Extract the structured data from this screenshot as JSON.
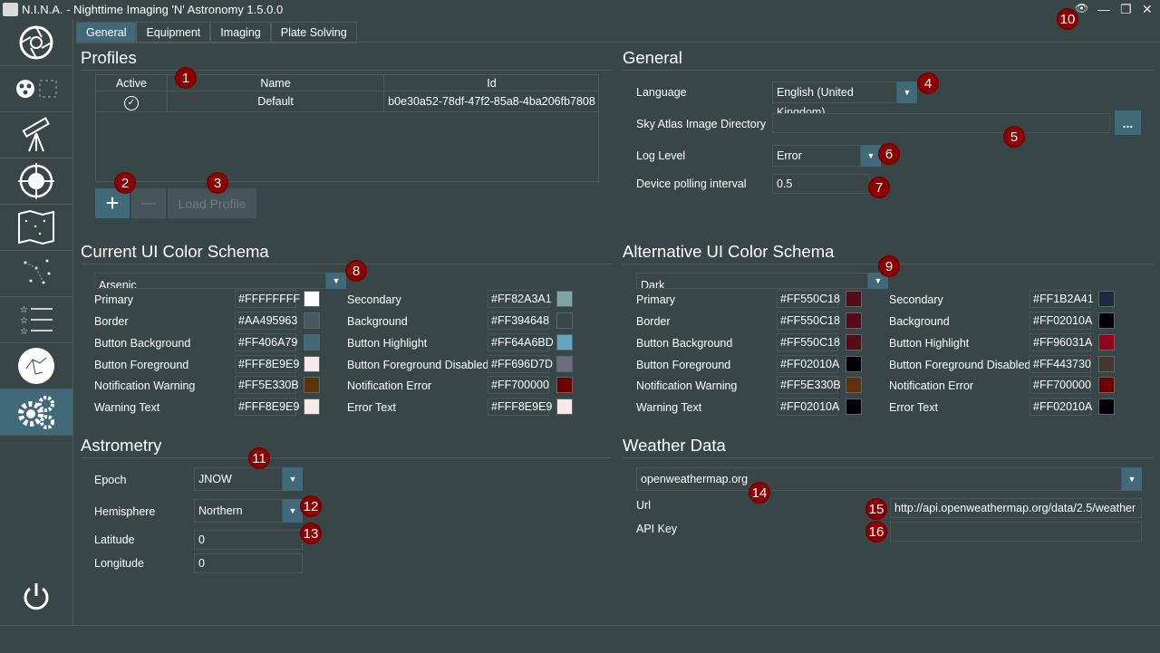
{
  "window": {
    "title": "N.I.N.A. - Nighttime Imaging 'N' Astronomy 1.5.0.0",
    "controls": {
      "minimize": "—",
      "restore": "❐",
      "close": "✕",
      "eye": "👁"
    }
  },
  "tabs": [
    {
      "label": "General",
      "active": true
    },
    {
      "label": "Equipment",
      "active": false
    },
    {
      "label": "Imaging",
      "active": false
    },
    {
      "label": "Plate Solving",
      "active": false
    }
  ],
  "sidebar": {
    "items": [
      {
        "name": "sidebar-item-camera",
        "icon": "aperture-icon"
      },
      {
        "name": "sidebar-item-filter",
        "icon": "filter-wheel-icon"
      },
      {
        "name": "sidebar-item-telescope",
        "icon": "telescope-icon"
      },
      {
        "name": "sidebar-item-guider",
        "icon": "phd-icon"
      },
      {
        "name": "sidebar-item-skyatlas",
        "icon": "sky-map-icon"
      },
      {
        "name": "sidebar-item-framing",
        "icon": "stars-icon"
      },
      {
        "name": "sidebar-item-sequence",
        "icon": "sequence-list-icon"
      },
      {
        "name": "sidebar-item-skysurvey",
        "icon": "constellation-icon"
      },
      {
        "name": "sidebar-item-options",
        "icon": "gear-icon",
        "active": true
      }
    ],
    "power_icon": "power-icon"
  },
  "profiles": {
    "heading": "Profiles",
    "columns": [
      "Active",
      "Name",
      "Id"
    ],
    "rows": [
      {
        "active": "✓",
        "name": "Default",
        "id": "b0e30a52-78df-47f2-85a8-4ba206fb7808"
      }
    ],
    "add_label": "+",
    "remove_label": "—",
    "load_label": "Load Profile"
  },
  "general": {
    "heading": "General",
    "language_label": "Language",
    "language_value": "English (United Kingdom)",
    "skyatlas_label": "Sky Atlas Image Directory",
    "skyatlas_value": "",
    "browse_label": "...",
    "loglevel_label": "Log Level",
    "loglevel_value": "Error",
    "polling_label": "Device polling interval",
    "polling_value": "0.5"
  },
  "current_schema": {
    "heading": "Current UI Color Schema",
    "selected": "Arsenic",
    "left": [
      {
        "label": "Primary",
        "hex": "#FFFFFFFF",
        "color": "#FFFFFF"
      },
      {
        "label": "Border",
        "hex": "#AA495963",
        "color": "#495963"
      },
      {
        "label": "Button Background",
        "hex": "#FF406A79",
        "color": "#406A79"
      },
      {
        "label": "Button Foreground",
        "hex": "#FFF8E9E9",
        "color": "#F8E9E9"
      },
      {
        "label": "Notification Warning",
        "hex": "#FF5E330B",
        "color": "#5E330B"
      },
      {
        "label": "Warning Text",
        "hex": "#FFF8E9E9",
        "color": "#F8E9E9"
      }
    ],
    "right": [
      {
        "label": "Secondary",
        "hex": "#FF82A3A1",
        "color": "#82A3A1"
      },
      {
        "label": "Background",
        "hex": "#FF394648",
        "color": "#394648"
      },
      {
        "label": "Button Highlight",
        "hex": "#FF64A6BD",
        "color": "#64A6BD"
      },
      {
        "label": "Button Foreground Disabled",
        "hex": "#FF696D7D",
        "color": "#696D7D"
      },
      {
        "label": "Notification Error",
        "hex": "#FF700000",
        "color": "#700000"
      },
      {
        "label": "Error Text",
        "hex": "#FFF8E9E9",
        "color": "#F8E9E9"
      }
    ]
  },
  "alt_schema": {
    "heading": "Alternative UI Color Schema",
    "selected": "Dark",
    "left": [
      {
        "label": "Primary",
        "hex": "#FF550C18",
        "color": "#550C18"
      },
      {
        "label": "Border",
        "hex": "#FF550C18",
        "color": "#550C18"
      },
      {
        "label": "Button Background",
        "hex": "#FF550C18",
        "color": "#550C18"
      },
      {
        "label": "Button Foreground",
        "hex": "#FF02010A",
        "color": "#02010A"
      },
      {
        "label": "Notification Warning",
        "hex": "#FF5E330B",
        "color": "#5E330B"
      },
      {
        "label": "Warning Text",
        "hex": "#FF02010A",
        "color": "#02010A"
      }
    ],
    "right": [
      {
        "label": "Secondary",
        "hex": "#FF1B2A41",
        "color": "#1B2A41"
      },
      {
        "label": "Background",
        "hex": "#FF02010A",
        "color": "#02010A"
      },
      {
        "label": "Button Highlight",
        "hex": "#FF96031A",
        "color": "#96031A"
      },
      {
        "label": "Button Foreground Disabled",
        "hex": "#FF443730",
        "color": "#443730"
      },
      {
        "label": "Notification Error",
        "hex": "#FF700000",
        "color": "#700000"
      },
      {
        "label": "Error Text",
        "hex": "#FF02010A",
        "color": "#02010A"
      }
    ]
  },
  "astrometry": {
    "heading": "Astrometry",
    "epoch_label": "Epoch",
    "epoch_value": "JNOW",
    "hemisphere_label": "Hemisphere",
    "hemisphere_value": "Northern",
    "latitude_label": "Latitude",
    "latitude_value": "0",
    "longitude_label": "Longitude",
    "longitude_value": "0"
  },
  "weather": {
    "heading": "Weather Data",
    "source_value": "openweathermap.org",
    "url_label": "Url",
    "url_value": "http://api.openweathermap.org/data/2.5/weather",
    "apikey_label": "API Key",
    "apikey_value": ""
  },
  "markers": [
    "1",
    "2",
    "3",
    "4",
    "5",
    "6",
    "7",
    "8",
    "9",
    "10",
    "11",
    "12",
    "13",
    "14",
    "15",
    "16"
  ],
  "accent": {
    "marker": "#8B0000",
    "button": "#406A79",
    "background": "#394648"
  }
}
